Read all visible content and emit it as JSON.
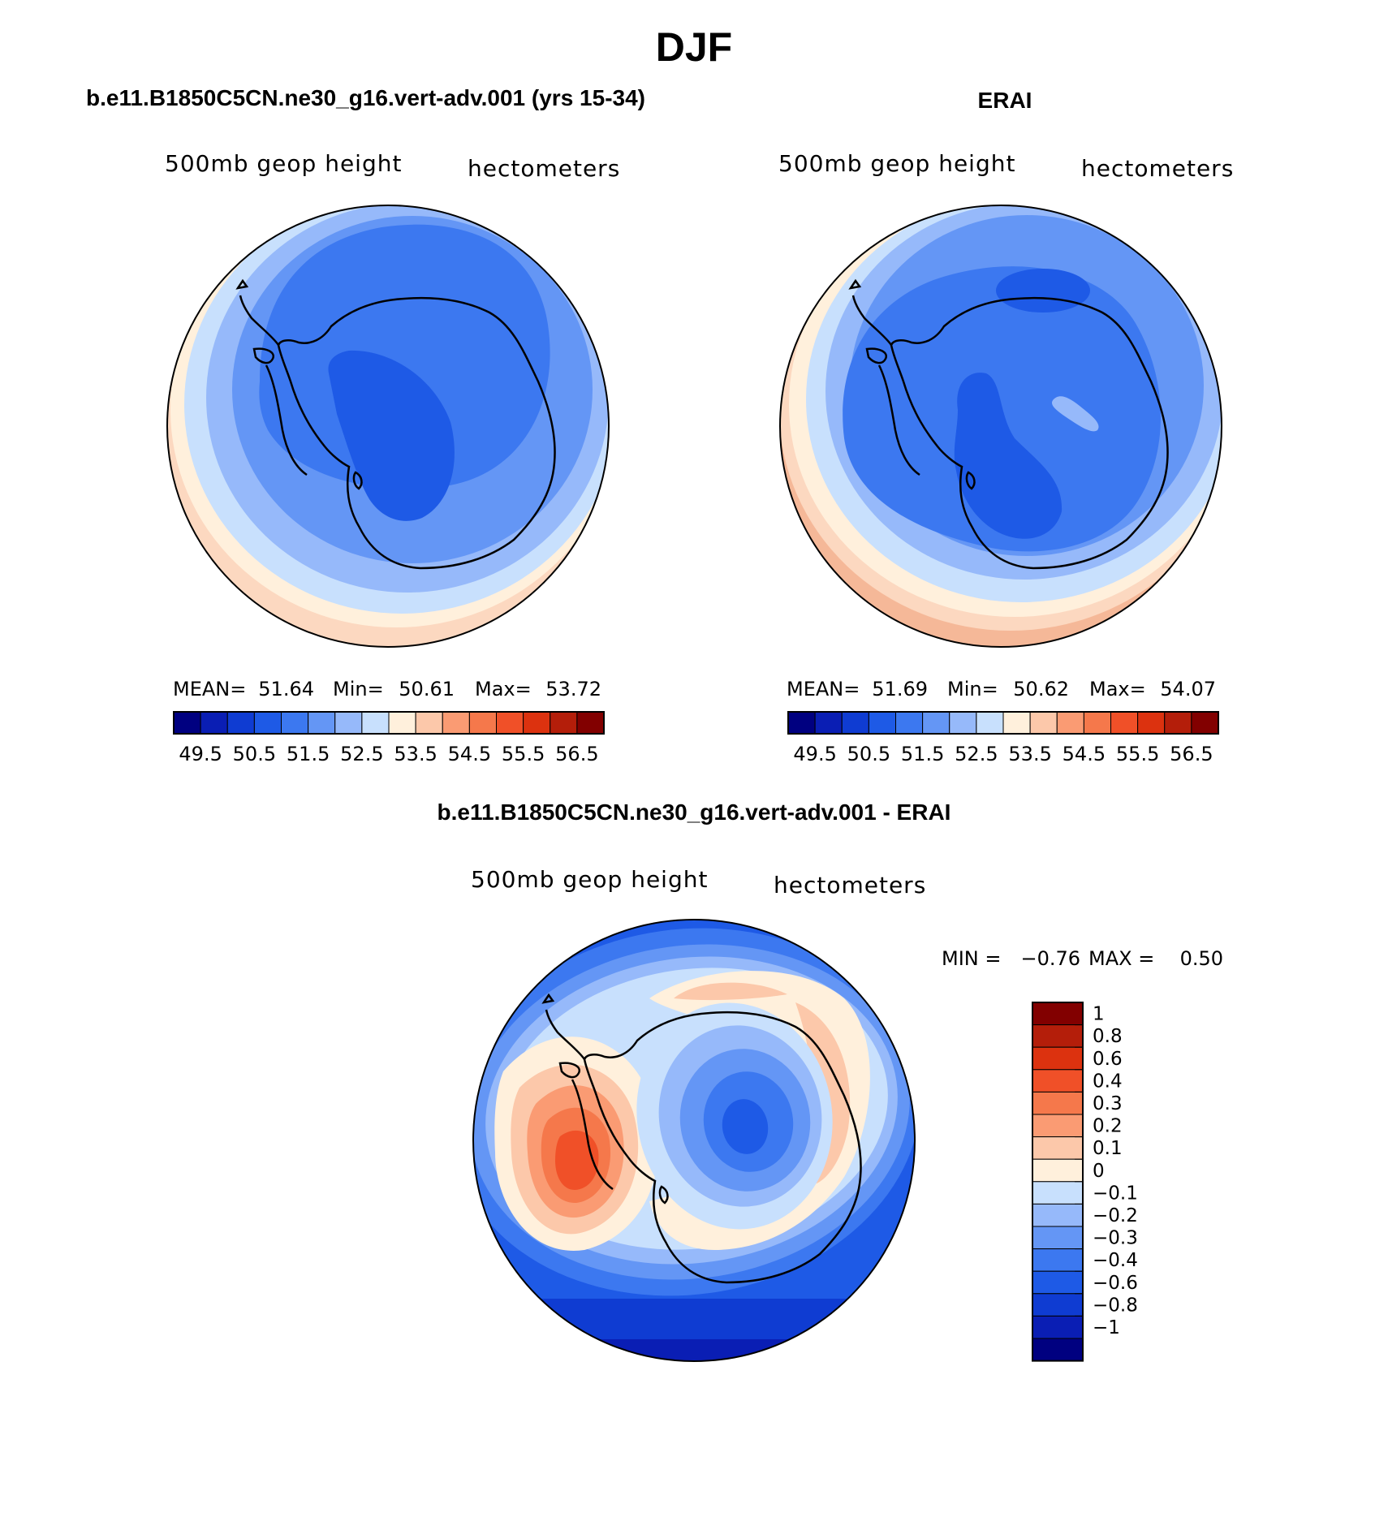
{
  "figure": {
    "season": "DJF"
  },
  "colors": {
    "scale": [
      "#000080",
      "#0a1eb4",
      "#0f3cd2",
      "#1e5ae6",
      "#3c78f0",
      "#6496f5",
      "#96b9fa",
      "#c8e0fd",
      "#fff0dc",
      "#fcc8aa",
      "#fa9b73",
      "#f5784b",
      "#f05028",
      "#dc320f",
      "#b41e0a",
      "#820000"
    ],
    "coast": "#000000"
  },
  "chart_data": [
    {
      "type": "heatmap",
      "projection": "polar stereographic, south pole",
      "heading": "b.e11.B1850C5CN.ne30_g16.vert-adv.001 (yrs 15-34)",
      "left_label": "500mb geop height",
      "right_label": "hectometers",
      "stats": {
        "mean_label": "MEAN=",
        "mean": "51.64",
        "min_label": "Min=",
        "min": "50.61",
        "max_label": "Max=",
        "max": "53.72"
      },
      "colorbar_ticks": [
        "49.5",
        "50.5",
        "51.5",
        "52.5",
        "53.5",
        "54.5",
        "55.5",
        "56.5"
      ],
      "contour_levels": [
        49,
        49.5,
        50,
        50.5,
        51,
        51.5,
        52,
        52.5,
        53,
        53.5,
        54,
        54.5,
        55,
        55.5,
        56,
        56.5,
        57
      ],
      "field_bands": [
        53.2,
        52.8,
        52.3,
        51.8,
        51.3,
        50.8
      ],
      "units": "hectometers"
    },
    {
      "type": "heatmap",
      "projection": "polar stereographic, south pole",
      "heading": "ERAI",
      "left_label": "500mb geop height",
      "right_label": "hectometers",
      "stats": {
        "mean_label": "MEAN=",
        "mean": "51.69",
        "min_label": "Min=",
        "min": "50.62",
        "max_label": "Max=",
        "max": "54.07"
      },
      "colorbar_ticks": [
        "49.5",
        "50.5",
        "51.5",
        "52.5",
        "53.5",
        "54.5",
        "55.5",
        "56.5"
      ],
      "contour_levels": [
        49,
        49.5,
        50,
        50.5,
        51,
        51.5,
        52,
        52.5,
        53,
        53.5,
        54,
        54.5,
        55,
        55.5,
        56,
        56.5,
        57
      ],
      "field_bands": [
        53.7,
        53.2,
        52.8,
        52.3,
        51.8,
        51.3
      ],
      "units": "hectometers"
    },
    {
      "type": "heatmap",
      "projection": "polar stereographic, south pole",
      "heading": "b.e11.B1850C5CN.ne30_g16.vert-adv.001 - ERAI",
      "left_label": "500mb geop height",
      "right_label": "hectometers",
      "stats": {
        "min_label": "MIN =",
        "min": "−0.76",
        "max_label": "MAX =",
        "max": "0.50"
      },
      "colorbar_ticks": [
        "1",
        "0.8",
        "0.6",
        "0.4",
        "0.3",
        "0.2",
        "0.1",
        "0",
        "−0.1",
        "−0.2",
        "−0.3",
        "−0.4",
        "−0.6",
        "−0.8",
        "−1"
      ],
      "units": "hectometers"
    }
  ]
}
